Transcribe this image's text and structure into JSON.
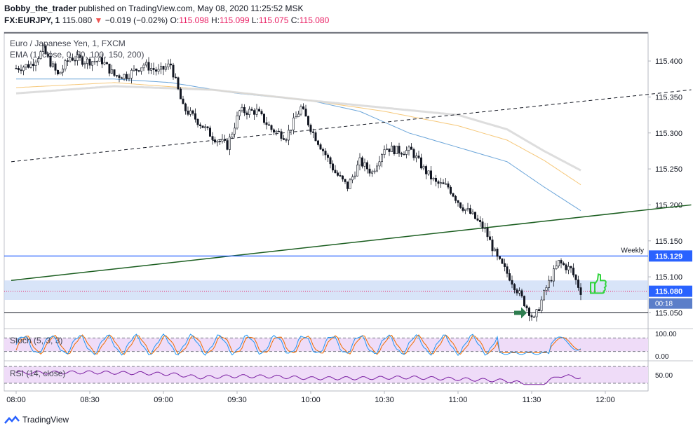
{
  "header": {
    "publisher": "Bobby_the_trader",
    "published_text": "published on TradingView.com, May 08, 2020 11:25:52 MSK",
    "symbol_line": "FX:EURJPY, 1",
    "last": "115.080",
    "change": "−0.019 (−0.02%)",
    "o_label": "O:",
    "o": "115.098",
    "h_label": "H:",
    "h": "115.099",
    "l_label": "L:",
    "l": "115.075",
    "c_label": "C:",
    "c": "115.080"
  },
  "legend": {
    "instrument": "Euro / Japanese Yen, 1, FXCM",
    "ema": "EMA (1, close, 0, 50, 100, 150, 200)"
  },
  "footer": {
    "brand": "TradingView"
  },
  "colors": {
    "bull": "#131722",
    "bear": "#131722",
    "grid": "#f0f3fa",
    "axis_text": "#131722",
    "weekly_line": "#2962ff",
    "support_zone": "#c7d8f5",
    "uptrend": "#1b5e20",
    "ema50": "#5b9bd5",
    "ema100": "#f5c26b",
    "ema150": "#d9d9d9",
    "stoch_k": "#2196f3",
    "stoch_d": "#ef6c00",
    "rsi": "#7b1fa2",
    "osc_band": "#efdcf8",
    "price_tag": "#2962ff",
    "close_tag": "#2962ff"
  },
  "chart_data": {
    "type": "candlestick",
    "symbol": "FX:EURJPY",
    "timeframe": "1",
    "y_ticks": [
      115.05,
      115.1,
      115.15,
      115.2,
      115.25,
      115.3,
      115.35,
      115.4
    ],
    "y_tick_labels": [
      "115.050",
      "115.100",
      "115.150",
      "115.200",
      "115.250",
      "115.300",
      "115.350",
      "115.400"
    ],
    "x_ticks": [
      "08:00",
      "08:30",
      "09:00",
      "09:30",
      "10:00",
      "10:30",
      "11:00",
      "11:30",
      "12:00"
    ],
    "ylim": [
      115.03,
      115.44
    ],
    "close_anchors": [
      [
        0,
        115.39
      ],
      [
        6,
        115.395
      ],
      [
        11,
        115.415
      ],
      [
        17,
        115.38
      ],
      [
        22,
        115.405
      ],
      [
        28,
        115.4
      ],
      [
        35,
        115.4
      ],
      [
        40,
        115.38
      ],
      [
        45,
        115.38
      ],
      [
        52,
        115.395
      ],
      [
        58,
        115.385
      ],
      [
        63,
        115.395
      ],
      [
        68,
        115.335
      ],
      [
        73,
        115.32
      ],
      [
        80,
        115.295
      ],
      [
        86,
        115.282
      ],
      [
        91,
        115.33
      ],
      [
        98,
        115.33
      ],
      [
        104,
        115.305
      ],
      [
        110,
        115.295
      ],
      [
        116,
        115.335
      ],
      [
        121,
        115.3
      ],
      [
        126,
        115.27
      ],
      [
        130,
        115.245
      ],
      [
        135,
        115.225
      ],
      [
        140,
        115.26
      ],
      [
        145,
        115.245
      ],
      [
        150,
        115.28
      ],
      [
        156,
        115.275
      ],
      [
        161,
        115.275
      ],
      [
        166,
        115.25
      ],
      [
        171,
        115.23
      ],
      [
        176,
        115.225
      ],
      [
        181,
        115.2
      ],
      [
        186,
        115.185
      ],
      [
        191,
        115.165
      ],
      [
        196,
        115.125
      ],
      [
        201,
        115.1
      ],
      [
        206,
        115.07
      ],
      [
        211,
        115.04
      ],
      [
        216,
        115.085
      ],
      [
        221,
        115.12
      ],
      [
        226,
        115.11
      ],
      [
        230,
        115.08
      ]
    ],
    "annotations": [
      {
        "type": "hline",
        "price": 115.129,
        "label": "Weekly",
        "tag": "115.129"
      },
      {
        "type": "zone",
        "from": 115.068,
        "to": 115.095
      },
      {
        "type": "hline",
        "price": 115.08,
        "style": "dotted",
        "tag": "115.080",
        "countdown": "00:18"
      },
      {
        "type": "hline",
        "price": 115.05,
        "style": "solid-black"
      },
      {
        "type": "trendline",
        "from": [
          -2,
          115.26
        ],
        "to": [
          275,
          115.36
        ],
        "style": "dashed"
      },
      {
        "type": "trendline",
        "from": [
          -2,
          115.095
        ],
        "to": [
          275,
          115.2
        ],
        "style": "solid"
      }
    ],
    "ema_series": [
      {
        "name": "50",
        "anchors": [
          [
            0,
            115.375
          ],
          [
            40,
            115.375
          ],
          [
            63,
            115.37
          ],
          [
            90,
            115.355
          ],
          [
            120,
            115.345
          ],
          [
            140,
            115.33
          ],
          [
            160,
            115.3
          ],
          [
            180,
            115.28
          ],
          [
            200,
            115.26
          ],
          [
            215,
            115.225
          ],
          [
            230,
            115.192
          ]
        ]
      },
      {
        "name": "100",
        "anchors": [
          [
            0,
            115.363
          ],
          [
            40,
            115.37
          ],
          [
            80,
            115.36
          ],
          [
            120,
            115.345
          ],
          [
            150,
            115.33
          ],
          [
            180,
            115.31
          ],
          [
            200,
            115.29
          ],
          [
            215,
            115.262
          ],
          [
            230,
            115.228
          ]
        ]
      },
      {
        "name": "150",
        "anchors": [
          [
            0,
            115.355
          ],
          [
            40,
            115.365
          ],
          [
            80,
            115.36
          ],
          [
            120,
            115.345
          ],
          [
            150,
            115.335
          ],
          [
            180,
            115.325
          ],
          [
            200,
            115.305
          ],
          [
            215,
            115.275
          ],
          [
            230,
            115.248
          ]
        ]
      }
    ],
    "stoch": {
      "title": "Stoch (5, 3, 3)",
      "y_ticks": [
        0,
        100
      ],
      "y_tick_labels": [
        "0.00",
        "100.00"
      ],
      "band": [
        20,
        80
      ]
    },
    "rsi": {
      "title": "RSI (14, close)",
      "y_ticks": [
        50
      ],
      "y_tick_labels": [
        "50.00"
      ],
      "band": [
        30,
        70
      ],
      "anchors": [
        [
          0,
          55
        ],
        [
          30,
          56
        ],
        [
          50,
          54
        ],
        [
          63,
          52
        ],
        [
          75,
          44
        ],
        [
          90,
          47
        ],
        [
          105,
          46
        ],
        [
          120,
          42
        ],
        [
          140,
          42
        ],
        [
          160,
          44
        ],
        [
          180,
          40
        ],
        [
          200,
          36
        ],
        [
          206,
          30
        ],
        [
          211,
          22
        ],
        [
          216,
          32
        ],
        [
          221,
          48
        ],
        [
          226,
          46
        ],
        [
          230,
          44
        ]
      ]
    }
  }
}
